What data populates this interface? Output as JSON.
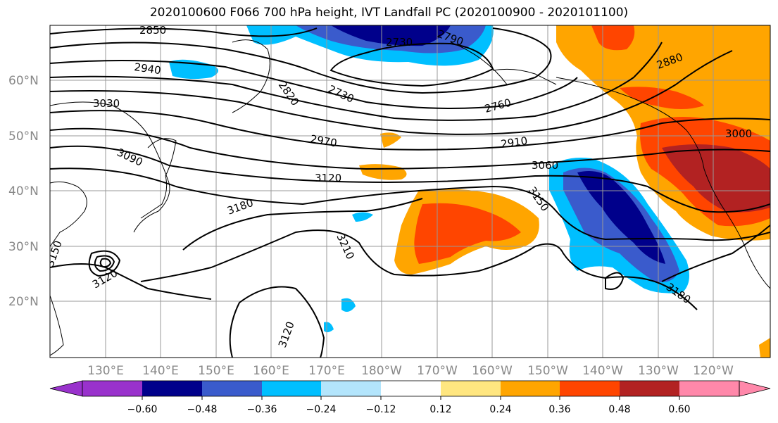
{
  "title": "2020100600 F066 700 hPa height, IVT Landfall PC (2020100900 - 2020101100)",
  "lat_labels": [
    "60°N",
    "50°N",
    "40°N",
    "30°N",
    "20°N"
  ],
  "lon_labels": [
    "130°E",
    "140°E",
    "150°E",
    "160°E",
    "170°E",
    "180°W",
    "170°W",
    "160°W",
    "150°W",
    "140°W",
    "130°W",
    "120°W"
  ],
  "contour_labels": [
    "2850",
    "2790",
    "2730",
    "2940",
    "2820",
    "2730",
    "2760",
    "3030",
    "2880",
    "2970",
    "2910",
    "3000",
    "3090",
    "3060",
    "3120",
    "3150",
    "3180",
    "3210",
    "3150",
    "3120",
    "3120",
    "3180"
  ],
  "colorbar": {
    "tick_labels": [
      "−0.60",
      "−0.48",
      "−0.36",
      "−0.24",
      "−0.12",
      "0.12",
      "0.24",
      "0.36",
      "0.48",
      "0.60"
    ],
    "colors": [
      "#9932cc",
      "#00008b",
      "#3a5bcc",
      "#00bfff",
      "#b3e5fc",
      "#ffffff",
      "#ffe680",
      "#ffa500",
      "#ff4500",
      "#b22222",
      "#ff88aa"
    ]
  }
}
